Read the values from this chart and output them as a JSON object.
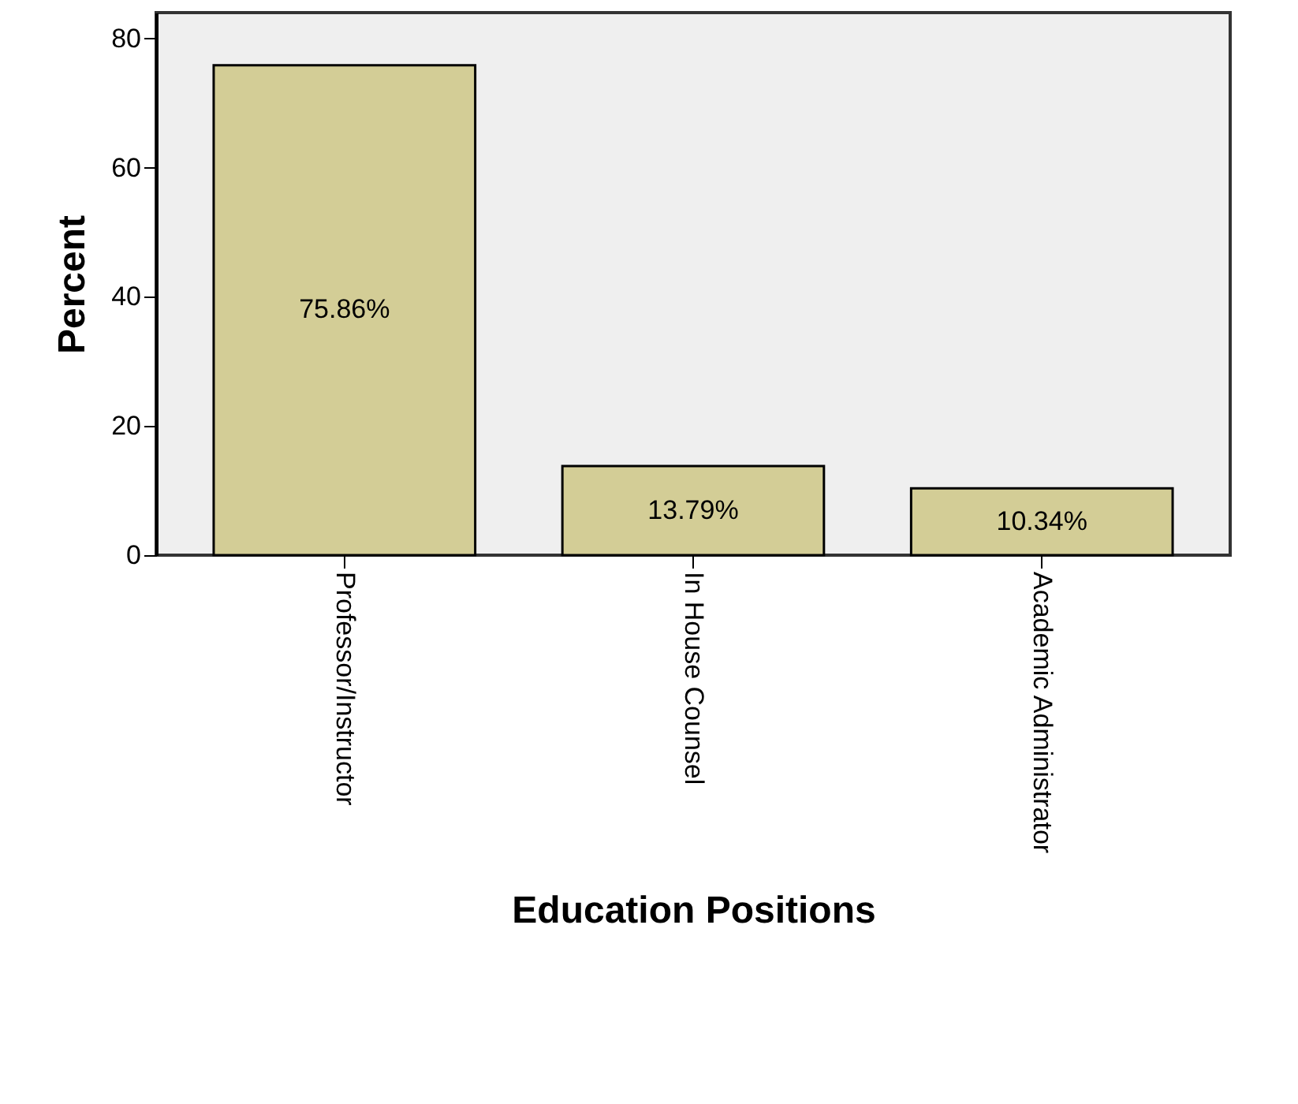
{
  "chart_data": {
    "type": "bar",
    "xlabel": "Education Positions",
    "ylabel": "Percent",
    "categories": [
      "Professor/Instructor",
      "In House Counsel",
      "Academic Administrator"
    ],
    "values": [
      75.86,
      13.79,
      10.34
    ],
    "value_labels": [
      "75.86%",
      "13.79%",
      "10.34%"
    ],
    "color": "#d3cd96",
    "ylim": [
      0,
      84
    ],
    "yticks": [
      0,
      20,
      40,
      60,
      80
    ]
  }
}
